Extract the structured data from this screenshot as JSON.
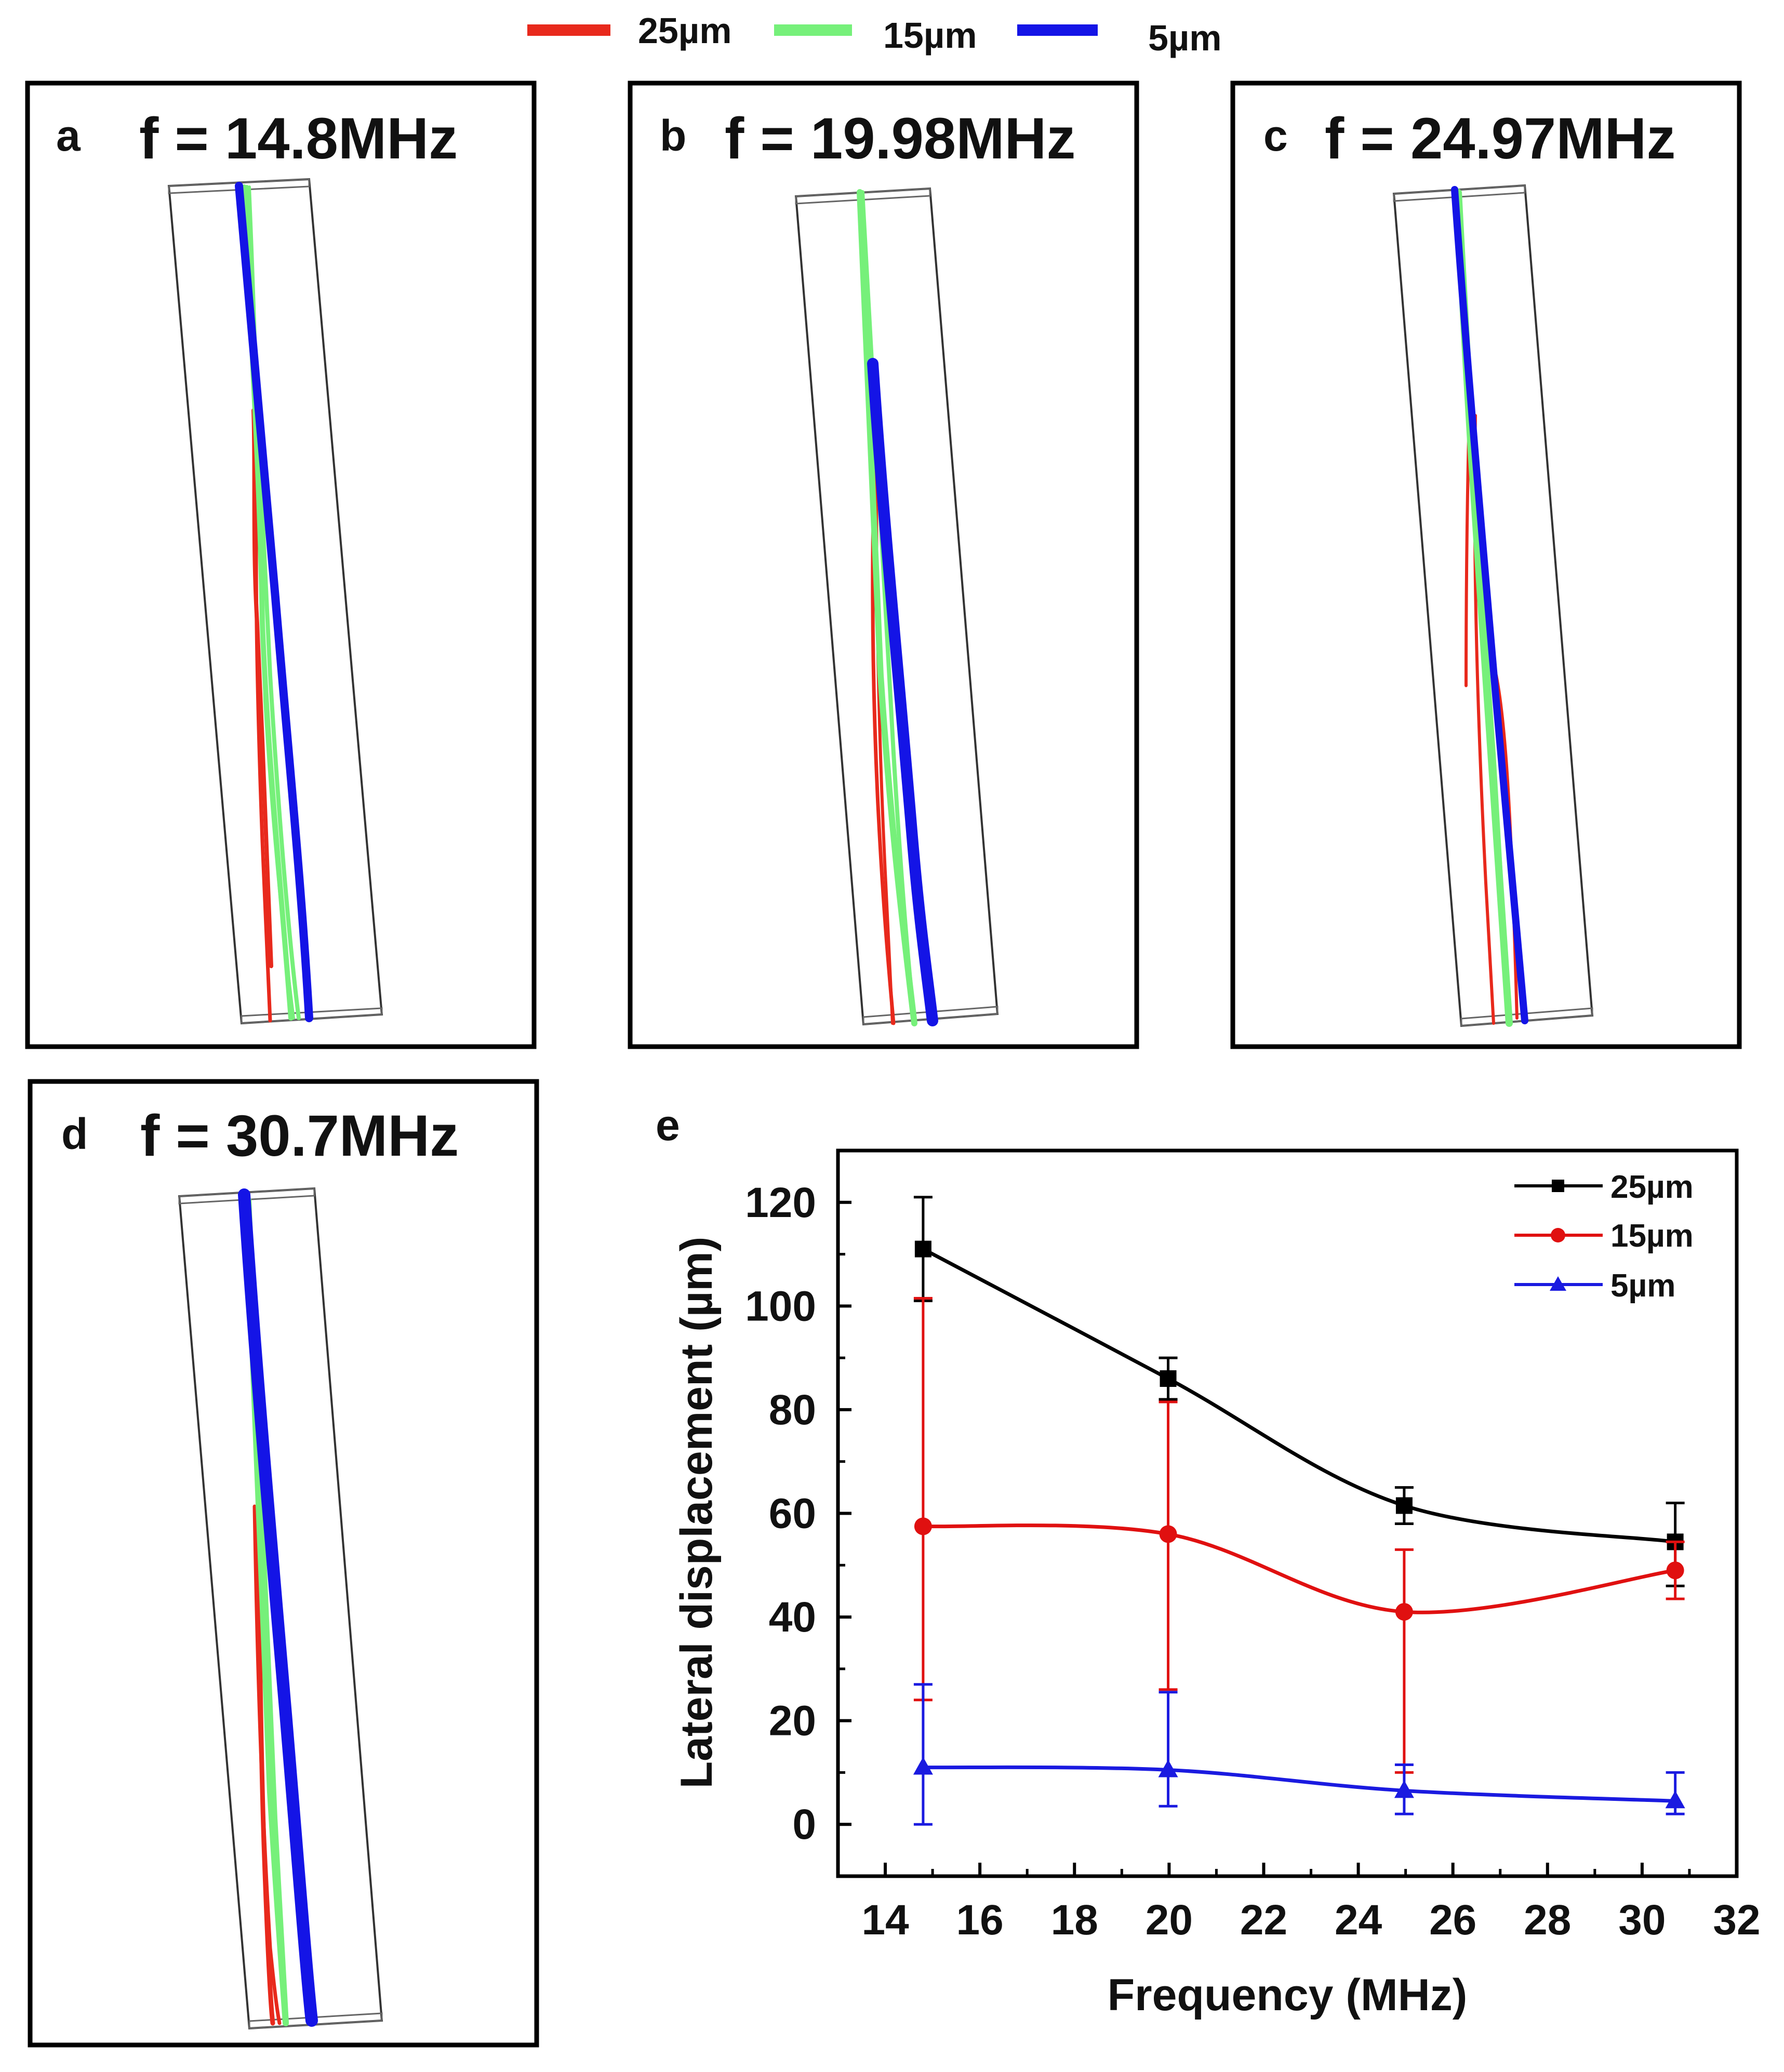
{
  "top_legend": {
    "items": [
      {
        "label": "25µm",
        "color": "#e8291c"
      },
      {
        "label": "15µm",
        "color": "#76f07a"
      },
      {
        "label": "5µm",
        "color": "#1414e6"
      }
    ]
  },
  "panels": [
    {
      "letter": "a",
      "freq": "f = 14.8MHz"
    },
    {
      "letter": "b",
      "freq": "f = 19.98MHz"
    },
    {
      "letter": "c",
      "freq": "f = 24.97MHz"
    },
    {
      "letter": "d",
      "freq": "f = 30.7MHz"
    }
  ],
  "chart_panel_letter": "e",
  "chart_data": {
    "type": "line",
    "xlabel": "Frequency (MHz)",
    "ylabel": "Lateral displacement (µm)",
    "xlim": [
      13,
      32
    ],
    "ylim": [
      -10,
      130
    ],
    "xticks": [
      14,
      16,
      18,
      20,
      22,
      24,
      26,
      28,
      30,
      32
    ],
    "yticks": [
      0,
      20,
      40,
      60,
      80,
      100,
      120
    ],
    "x": [
      14.8,
      19.98,
      24.97,
      30.7
    ],
    "legend_position": "top-right",
    "series": [
      {
        "name": "25µm",
        "color": "#000000",
        "marker": "square",
        "values": [
          111,
          86,
          61.5,
          54.5
        ],
        "err_low": [
          101,
          82,
          58,
          46
        ],
        "err_high": [
          121,
          90,
          65,
          62
        ]
      },
      {
        "name": "15µm",
        "color": "#e01010",
        "marker": "circle",
        "values": [
          57.5,
          56,
          41,
          49
        ],
        "err_low": [
          24,
          26,
          10,
          43.5
        ],
        "err_high": [
          101.5,
          81.5,
          53,
          54.5
        ]
      },
      {
        "name": "5µm",
        "color": "#1a1ae0",
        "marker": "triangle",
        "values": [
          11,
          10.5,
          6.5,
          4.5
        ],
        "err_low": [
          0,
          3.5,
          2,
          2
        ],
        "err_high": [
          27,
          25.5,
          11.5,
          10
        ]
      }
    ]
  }
}
